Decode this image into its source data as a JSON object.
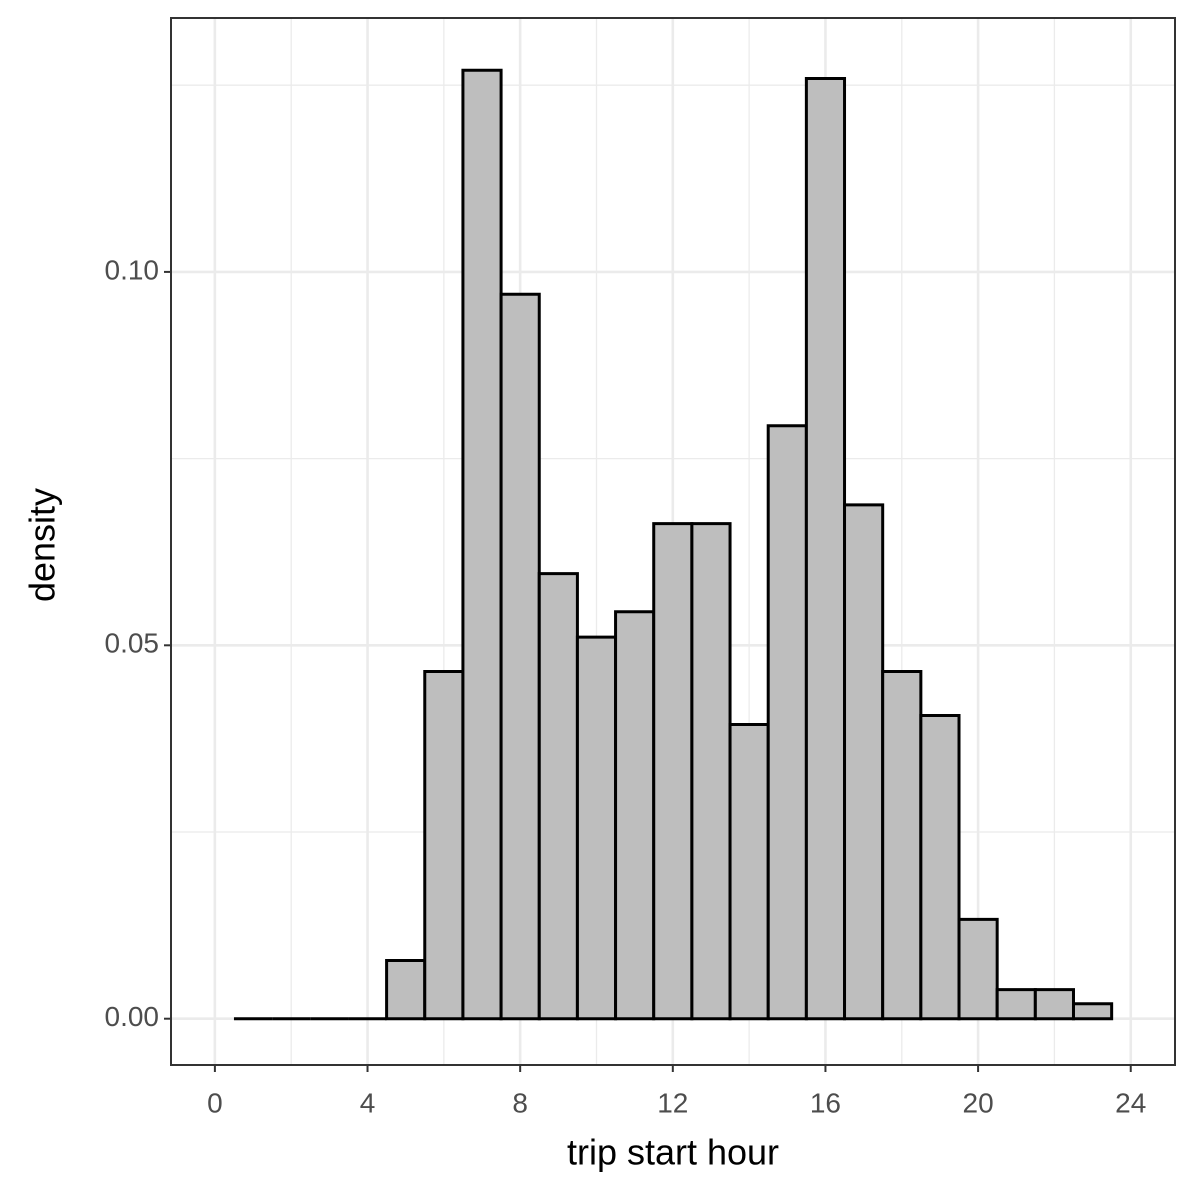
{
  "chart_data": {
    "type": "histogram",
    "x_label": "trip start hour",
    "y_label": "density",
    "bins": [
      0.5,
      1.5,
      2.5,
      3.5,
      4.5,
      5.5,
      6.5,
      7.5,
      8.5,
      9.5,
      10.5,
      11.5,
      12.5,
      13.5,
      14.5,
      15.5,
      16.5,
      17.5,
      18.5,
      19.5,
      20.5,
      21.5,
      22.5,
      23.5
    ],
    "values": [
      0,
      0,
      0,
      0,
      0.0078,
      0.0465,
      0.127,
      0.097,
      0.0596,
      0.0511,
      0.0545,
      0.0663,
      0.0663,
      0.0394,
      0.0794,
      0.1259,
      0.0688,
      0.0465,
      0.0406,
      0.0133,
      0.0039,
      0.0039,
      0.002
    ],
    "color": "#bebebe",
    "edge_color": "#000000",
    "xlim": [
      -1.15,
      25.16
    ],
    "ylim": [
      -0.0062,
      0.134
    ],
    "xticks": [
      0,
      4,
      8,
      12,
      16,
      20,
      24
    ],
    "yticks": [
      {
        "value": 0,
        "label": "0.00"
      },
      {
        "value": 0.05,
        "label": "0.05"
      },
      {
        "value": 0.1,
        "label": "0.10"
      }
    ],
    "x_minor_grid": [
      2,
      6,
      10,
      14,
      18,
      22
    ],
    "y_minor_grid": [
      0.025,
      0.075,
      0.125
    ],
    "grid": true
  }
}
